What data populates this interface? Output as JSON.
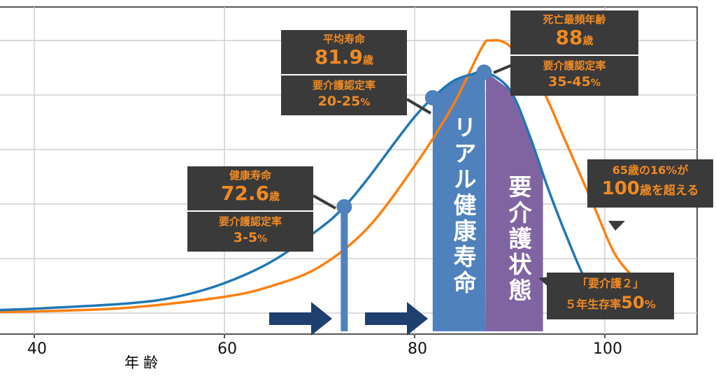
{
  "chart_data": {
    "type": "line",
    "xlabel": "年齢",
    "ylabel": "",
    "xlim": [
      35,
      115
    ],
    "ylim": [
      0,
      6
    ],
    "x_ticks": [
      40,
      60,
      80,
      100
    ],
    "grid": true,
    "series": [
      {
        "color": "#1f77b4",
        "x": [
          35,
          40,
          50,
          55,
          60,
          65,
          70,
          72.6,
          75,
          78,
          80,
          81.9,
          84,
          86,
          87.5,
          90,
          92,
          94,
          96,
          98,
          100
        ],
        "y": [
          0.05,
          0.08,
          0.18,
          0.3,
          0.55,
          0.95,
          1.55,
          1.95,
          2.45,
          3.15,
          3.6,
          3.95,
          4.25,
          4.38,
          4.42,
          4.1,
          3.3,
          2.3,
          1.4,
          0.6,
          0.15
        ]
      },
      {
        "color": "#ff7f0e",
        "x": [
          35,
          40,
          50,
          60,
          65,
          70,
          75,
          80,
          84,
          87,
          88,
          90,
          93,
          96,
          99,
          101,
          103
        ],
        "y": [
          0.02,
          0.03,
          0.1,
          0.3,
          0.5,
          0.85,
          1.55,
          2.7,
          3.8,
          4.85,
          5.0,
          4.9,
          4.25,
          3.1,
          1.9,
          1.1,
          0.65
        ]
      }
    ],
    "markers": [
      {
        "x": 72.6,
        "y": 1.95
      },
      {
        "x": 81.9,
        "y": 3.95
      },
      {
        "x": 87.3,
        "y": 4.42
      }
    ]
  },
  "boxes": {
    "heikin": {
      "title": "平均寿命",
      "value": "81.9",
      "unit": "歳",
      "rate_label": "要介護認定率",
      "rate_value": "20-25",
      "rate_unit": "%"
    },
    "shibou": {
      "title": "死亡最頻年齢",
      "value": "88",
      "unit": "歳",
      "rate_label": "要介護認定率",
      "rate_value": "35-45",
      "rate_unit": "%"
    },
    "kenko": {
      "title": "健康寿命",
      "value": "72.6",
      "unit": "歳",
      "rate_label": "要介護認定率",
      "rate_value": "3-5",
      "rate_unit": "%"
    },
    "centenarian": {
      "line1_pre": "65歳の16%が",
      "line2_num": "100",
      "line2_post": "歳を超える"
    },
    "kaigo2": {
      "line1": "「要介護２」",
      "line2_pre": "５年生存率",
      "line2_num": "50",
      "line2_unit": "%"
    }
  },
  "bands": {
    "real_label": "リアル健康寿命",
    "care_label": "要介護状態",
    "real_color": "#4f81bd",
    "care_color": "#8064a2"
  },
  "colors": {
    "box_bg": "#3a3a3a",
    "box_text": "#f08a24",
    "arrow": "#1f3f6e"
  }
}
